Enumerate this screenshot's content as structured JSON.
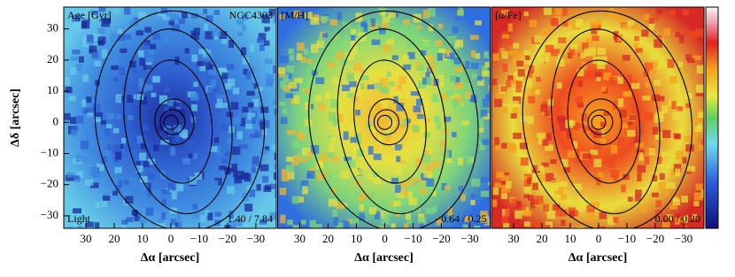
{
  "chart_data": [
    {
      "type": "map",
      "title": "Age [Gyr]",
      "galaxy": "NGC4303",
      "weighting": "Light",
      "range_label": "1.40 / 7.84",
      "palette": [
        "#1b2a9a",
        "#2f5fd0",
        "#3f8be0",
        "#66c9e8"
      ],
      "xlabel": "Δα [arcsec]",
      "ylabel": "Δδ [arcsec]",
      "xlim": [
        37.8,
        -37.2
      ],
      "ylim": [
        -34,
        37
      ],
      "xticks": [
        30,
        20,
        10,
        0,
        {
          "value": -10,
          "label": "−10"
        },
        {
          "value": -20,
          "label": "−20"
        },
        {
          "value": -30,
          "label": "−30"
        }
      ],
      "yticks": [
        30,
        20,
        10,
        0,
        {
          "value": -10,
          "label": "−10"
        },
        {
          "value": -20,
          "label": "−20"
        },
        {
          "value": -30,
          "label": "−30"
        }
      ]
    },
    {
      "type": "map",
      "title": "[M/H]",
      "range_label": "−0.64 / 0.25",
      "palette": [
        "#f2b530",
        "#e6e040",
        "#7fd67a",
        "#2f6fe0"
      ],
      "xlabel": "Δα [arcsec]",
      "xlim": [
        37.8,
        -37.2
      ],
      "ylim": [
        -34,
        37
      ],
      "xticks": [
        30,
        20,
        10,
        0,
        {
          "value": -10,
          "label": "−10"
        },
        {
          "value": -20,
          "label": "−20"
        },
        {
          "value": -30,
          "label": "−30"
        }
      ]
    },
    {
      "type": "map",
      "title": "[α/Fe]",
      "range_label": "0.00 / 0.20",
      "palette": [
        "#f5a21e",
        "#ef4a20",
        "#e8dd3c",
        "#d62a25"
      ],
      "xlabel": "Δα [arcsec]",
      "xlim": [
        37.8,
        -37.2
      ],
      "ylim": [
        -34,
        37
      ],
      "xticks": [
        30,
        20,
        10,
        0,
        {
          "value": -10,
          "label": "−10"
        },
        {
          "value": -20,
          "label": "−20"
        },
        {
          "value": -30,
          "label": "−30"
        }
      ]
    }
  ]
}
